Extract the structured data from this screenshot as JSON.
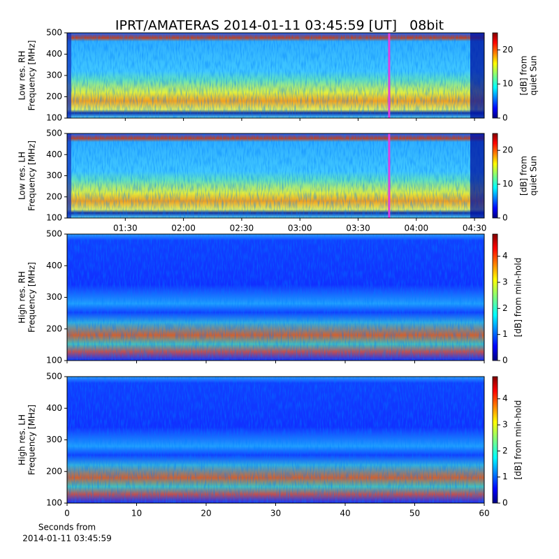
{
  "chart_data": [
    {
      "type": "spectrogram",
      "title": "IPRT/AMATERAS 2014-01-11 03:45:59 [UT]   08bit",
      "ylabel": [
        "Low res. RH",
        "Frequency [MHz]"
      ],
      "ylim": [
        100,
        500
      ],
      "yticks": [
        100,
        200,
        300,
        400,
        500
      ],
      "xlim": [
        60,
        275
      ],
      "xticks": [
        {
          "value": 90,
          "label": "01:30"
        },
        {
          "value": 120,
          "label": "02:00"
        },
        {
          "value": 150,
          "label": "02:30"
        },
        {
          "value": 180,
          "label": "03:00"
        },
        {
          "value": 210,
          "label": "03:30"
        },
        {
          "value": 240,
          "label": "04:00"
        },
        {
          "value": 270,
          "label": "04:30"
        }
      ],
      "show_xtick_labels": false,
      "marker_x": 226,
      "marker_color": "#e040e0",
      "style": "low",
      "colorbar": {
        "label": [
          "[dB] from",
          "quiet Sun"
        ],
        "lim": [
          0,
          25
        ],
        "ticks": [
          0,
          10,
          20
        ]
      }
    },
    {
      "type": "spectrogram",
      "ylabel": [
        "Low res. LH",
        "Frequency [MHz]"
      ],
      "ylim": [
        100,
        500
      ],
      "yticks": [
        100,
        200,
        300,
        400,
        500
      ],
      "xlim": [
        60,
        275
      ],
      "xticks": [
        {
          "value": 90,
          "label": "01:30"
        },
        {
          "value": 120,
          "label": "02:00"
        },
        {
          "value": 150,
          "label": "02:30"
        },
        {
          "value": 180,
          "label": "03:00"
        },
        {
          "value": 210,
          "label": "03:30"
        },
        {
          "value": 240,
          "label": "04:00"
        },
        {
          "value": 270,
          "label": "04:30"
        }
      ],
      "show_xtick_labels": true,
      "marker_x": 226,
      "marker_color": "#e040e0",
      "style": "low",
      "colorbar": {
        "label": [
          "[dB] from",
          "quiet Sun"
        ],
        "lim": [
          0,
          25
        ],
        "ticks": [
          0,
          10,
          20
        ]
      }
    },
    {
      "type": "spectrogram",
      "ylabel": [
        "High res. RH",
        "Frequency [MHz]"
      ],
      "ylim": [
        100,
        500
      ],
      "yticks": [
        100,
        200,
        300,
        400,
        500
      ],
      "xlim": [
        0,
        60
      ],
      "xticks": [
        0,
        10,
        20,
        30,
        40,
        50,
        60
      ],
      "show_xtick_labels": false,
      "style": "high",
      "colorbar": {
        "label": [
          "[dB] from min-hold"
        ],
        "lim": [
          0,
          4.85
        ],
        "ticks": [
          0,
          1,
          2,
          3,
          4
        ]
      }
    },
    {
      "type": "spectrogram",
      "ylabel": [
        "High res. LH",
        "Frequency [MHz]"
      ],
      "ylim": [
        100,
        500
      ],
      "yticks": [
        100,
        200,
        300,
        400,
        500
      ],
      "xlim": [
        0,
        60
      ],
      "xticks": [
        0,
        10,
        20,
        30,
        40,
        50,
        60
      ],
      "show_xtick_labels": true,
      "style": "high",
      "xlabel": [
        "Seconds from",
        "2014-01-11 03:45:59"
      ],
      "colorbar": {
        "label": [
          "[dB] from min-hold"
        ],
        "lim": [
          0,
          4.85
        ],
        "ticks": [
          0,
          1,
          2,
          3,
          4
        ]
      }
    }
  ]
}
